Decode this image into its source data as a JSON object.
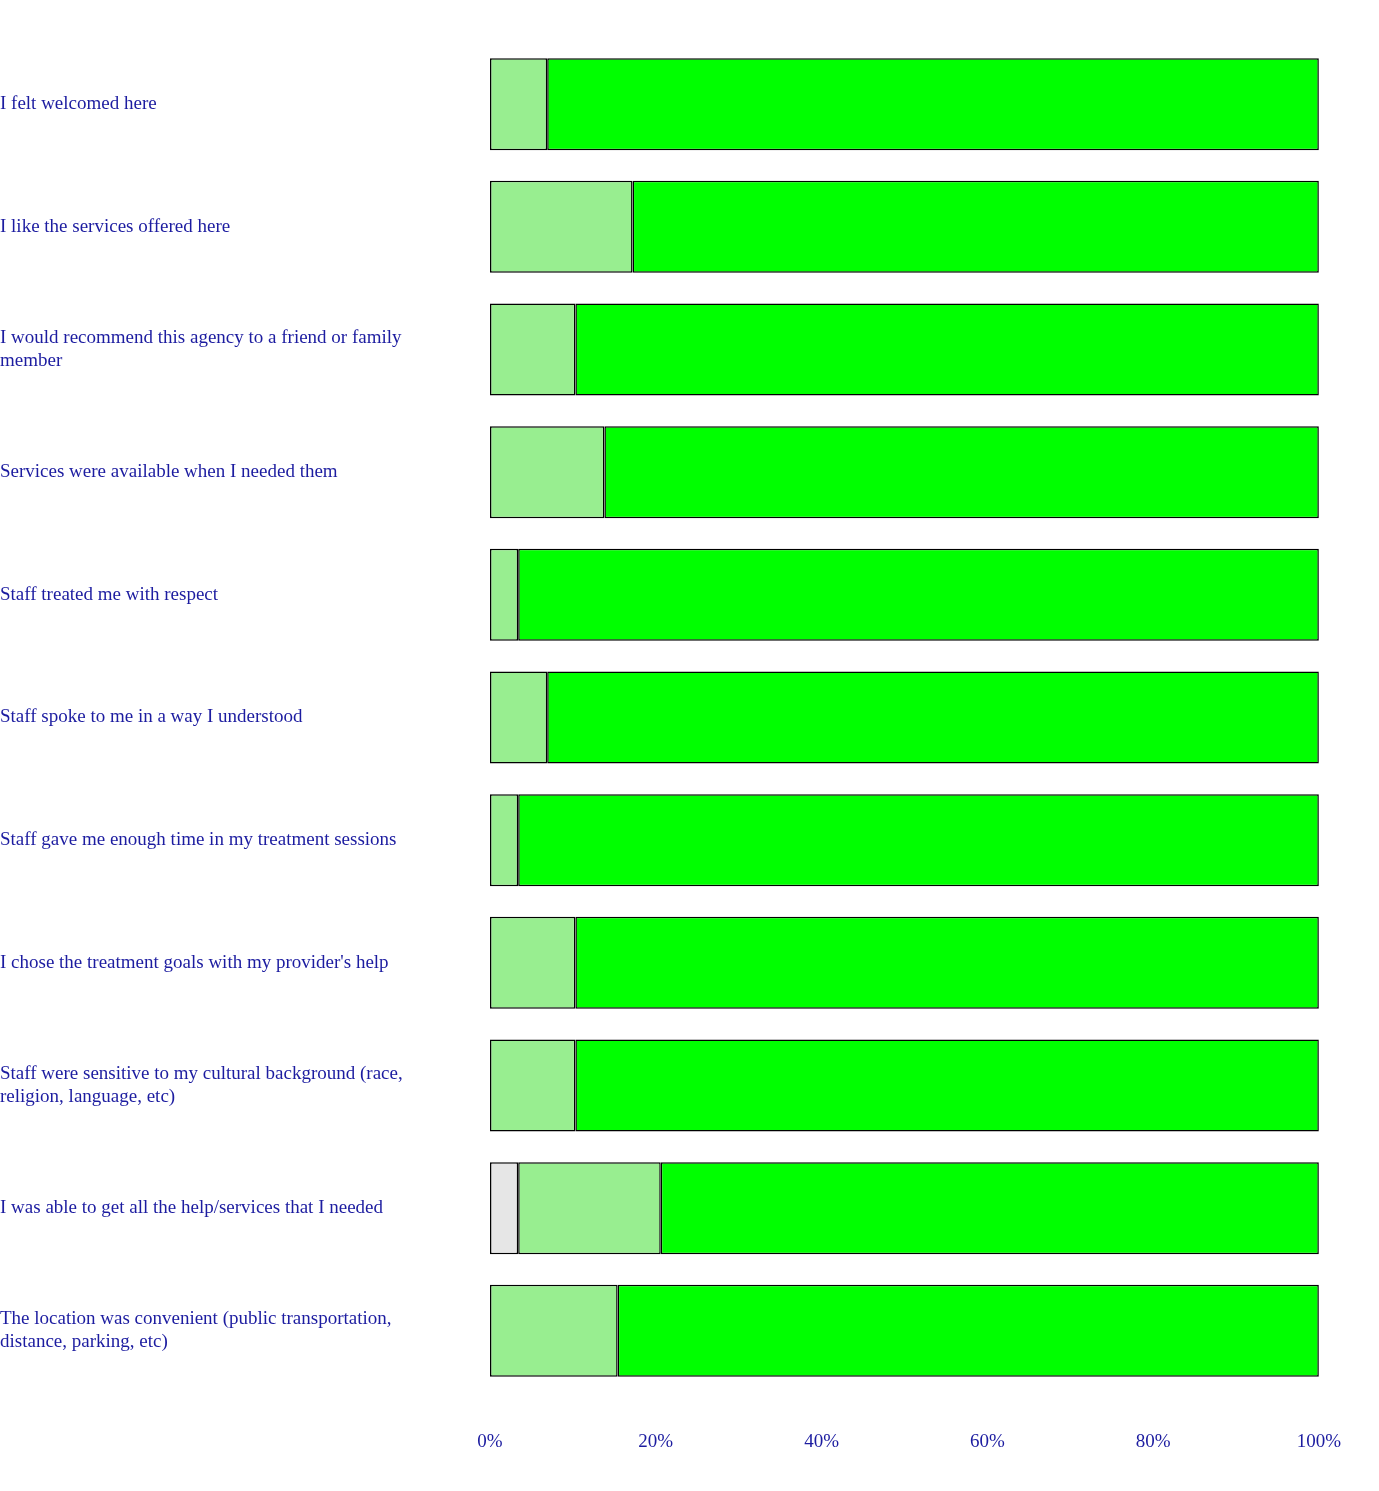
{
  "chart_data": {
    "type": "bar",
    "orientation": "horizontal",
    "stacked": true,
    "categories": [
      "I felt welcomed here",
      "I like the services offered here",
      "I would recommend this agency to a friend or family member",
      "Services were available when I needed them",
      "Staff treated me with respect",
      "Staff spoke to me in a way I understood",
      "Staff gave me enough time in my treatment sessions",
      "I chose the treatment goals with my provider's help",
      "Staff were sensitive to my cultural background (race, religion, language, etc)",
      "I was able to get all the help/services that I needed",
      "The location was convenient (public transportation, distance, parking, etc)"
    ],
    "series": [
      {
        "color": "#e6e6e6",
        "values": [
          0,
          0,
          0,
          0,
          0,
          0,
          0,
          0,
          0,
          3.4,
          0
        ]
      },
      {
        "color": "#98ee90",
        "values": [
          6.9,
          17.2,
          10.3,
          13.8,
          3.4,
          6.9,
          3.4,
          10.3,
          10.3,
          17.2,
          15.4
        ]
      },
      {
        "color": "#00ff00",
        "values": [
          93.1,
          82.8,
          89.7,
          86.2,
          96.6,
          93.1,
          96.6,
          89.7,
          89.7,
          79.4,
          84.6
        ]
      }
    ],
    "xlim": [
      0,
      100
    ],
    "xticks": [
      {
        "value": 0,
        "label": "0%"
      },
      {
        "value": 20,
        "label": "20%"
      },
      {
        "value": 40,
        "label": "40%"
      },
      {
        "value": 60,
        "label": "60%"
      },
      {
        "value": 80,
        "label": "80%"
      },
      {
        "value": 100,
        "label": "100%"
      }
    ],
    "grid": false,
    "legend": false
  }
}
